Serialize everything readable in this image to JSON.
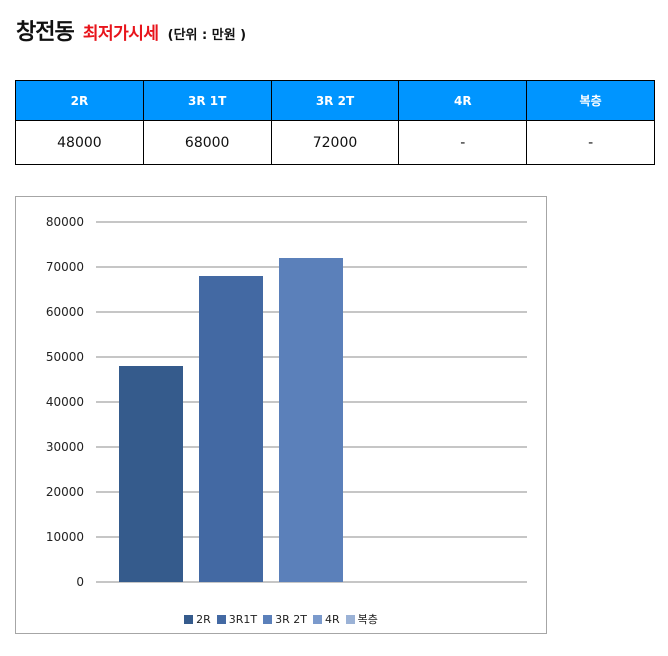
{
  "header": {
    "title": "창전동",
    "subtitle": "최저가시세",
    "unit": "(단위 : 만원 )"
  },
  "table": {
    "headers": [
      "2R",
      "3R 1T",
      "3R 2T",
      "4R",
      "복층"
    ],
    "values": [
      "48000",
      "68000",
      "72000",
      "-",
      "-"
    ]
  },
  "colors": {
    "header_bg": "#0095ff",
    "title_accent": "#e8141b",
    "series": [
      "#355b8c",
      "#4369a3",
      "#5b80ba",
      "#7b9acc",
      "#9bb2d6"
    ]
  },
  "chart_data": {
    "type": "bar",
    "categories": [
      "2R",
      "3R1T",
      "3R 2T",
      "4R",
      "복층"
    ],
    "values": [
      48000,
      68000,
      72000,
      null,
      null
    ],
    "legend": [
      "2R",
      "3R1T",
      "3R 2T",
      "4R",
      "복층"
    ],
    "legend_position": "bottom",
    "ylim": [
      0,
      80000
    ],
    "yticks": [
      "0",
      "10000",
      "20000",
      "30000",
      "40000",
      "50000",
      "60000",
      "70000",
      "80000"
    ],
    "grid": true,
    "title": "",
    "xlabel": "",
    "ylabel": ""
  }
}
